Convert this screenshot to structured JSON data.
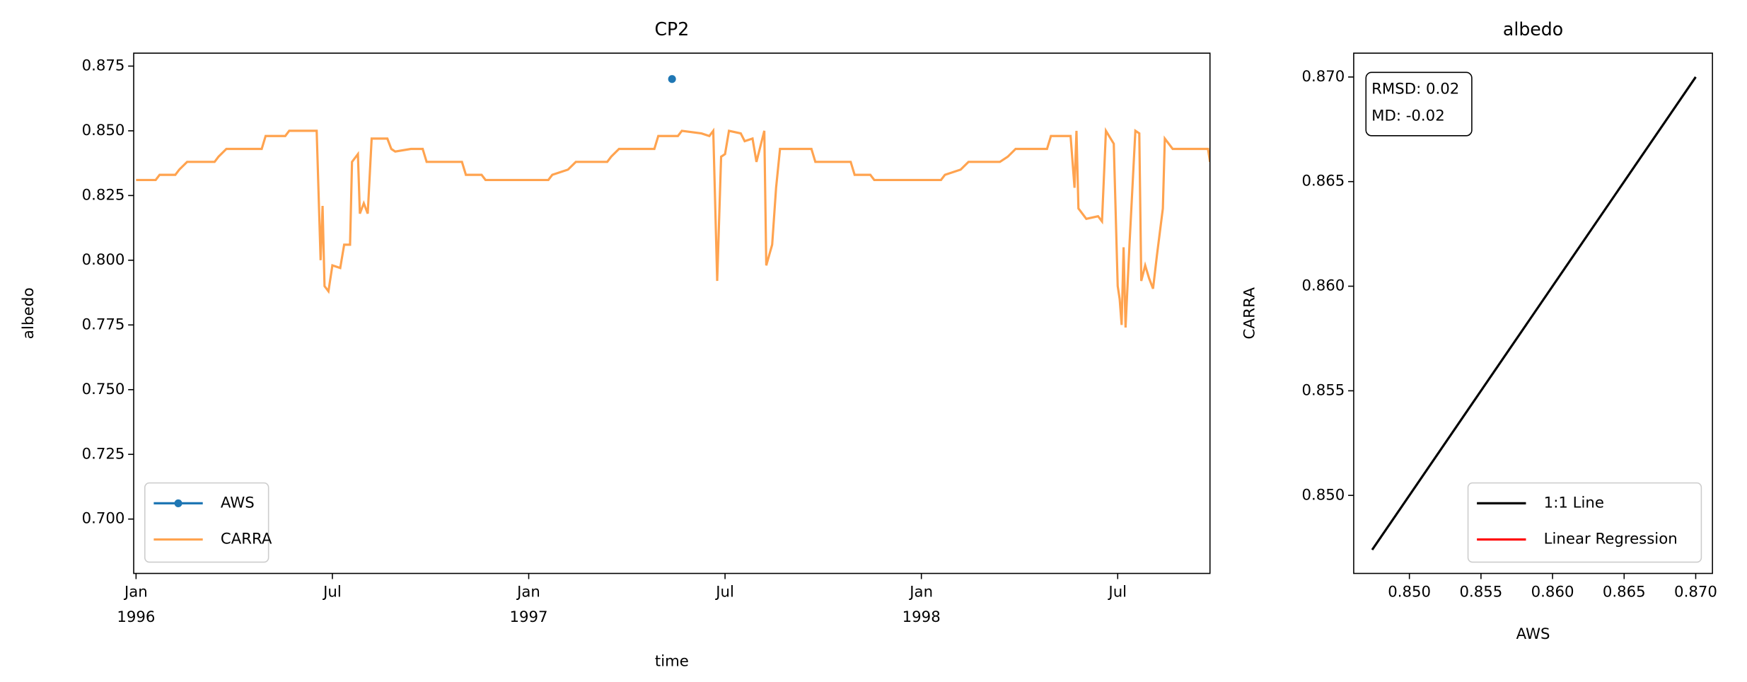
{
  "chart_data": [
    {
      "type": "line",
      "title": "CP2",
      "xlabel": "time",
      "ylabel": "albedo",
      "legend": "lower left",
      "xlim": [
        1995.994,
        1998.735
      ],
      "ylim": [
        0.679,
        0.88
      ],
      "xticks": [
        {
          "value": 1996,
          "label": "Jan\n1996"
        },
        {
          "value": 1996.5,
          "label": "Jul"
        },
        {
          "value": 1997,
          "label": "Jan\n1997"
        },
        {
          "value": 1997.5,
          "label": "Jul"
        },
        {
          "value": 1998,
          "label": "Jan\n1998"
        },
        {
          "value": 1998.5,
          "label": "Jul"
        }
      ],
      "yticks": [
        {
          "value": 0.7,
          "label": "0.700"
        },
        0.725,
        {
          "value": 0.75,
          "label": "0.750"
        },
        0.775,
        {
          "value": 0.8,
          "label": "0.800"
        },
        0.825,
        {
          "value": 0.85,
          "label": "0.850"
        },
        0.875
      ],
      "series": [
        {
          "name": "AWS",
          "color": "#1f77b4",
          "marker": "o",
          "x": [
            1997.365
          ],
          "values": [
            0.87
          ]
        },
        {
          "name": "CARRA",
          "color": "#ffa34f",
          "x": [
            1996.0,
            1996.05,
            1996.06,
            1996.1,
            1996.11,
            1996.13,
            1996.2,
            1996.21,
            1996.23,
            1996.32,
            1996.33,
            1996.38,
            1996.39,
            1996.46,
            1996.47,
            1996.475,
            1996.48,
            1996.49,
            1996.5,
            1996.52,
            1996.53,
            1996.545,
            1996.55,
            1996.565,
            1996.57,
            1996.58,
            1996.59,
            1996.6,
            1996.64,
            1996.65,
            1996.66,
            1996.7,
            1996.73,
            1996.74,
            1996.83,
            1996.84,
            1996.88,
            1996.89,
            1997.05,
            1997.06,
            1997.1,
            1997.12,
            1997.2,
            1997.21,
            1997.23,
            1997.32,
            1997.33,
            1997.38,
            1997.39,
            1997.44,
            1997.46,
            1997.47,
            1997.48,
            1997.49,
            1997.5,
            1997.51,
            1997.54,
            1997.55,
            1997.57,
            1997.58,
            1997.6,
            1997.605,
            1997.62,
            1997.63,
            1997.64,
            1997.72,
            1997.73,
            1997.82,
            1997.83,
            1997.87,
            1997.88,
            1998.05,
            1998.06,
            1998.1,
            1998.12,
            1998.2,
            1998.22,
            1998.24,
            1998.32,
            1998.33,
            1998.38,
            1998.39,
            1998.395,
            1998.4,
            1998.42,
            1998.45,
            1998.46,
            1998.47,
            1998.49,
            1998.5,
            1998.505,
            1998.51,
            1998.515,
            1998.52,
            1998.53,
            1998.545,
            1998.555,
            1998.56,
            1998.57,
            1998.58,
            1998.59,
            1998.6,
            1998.615,
            1998.62,
            1998.64,
            1998.73,
            1998.735
          ],
          "values": [
            0.831,
            0.831,
            0.833,
            0.833,
            0.835,
            0.838,
            0.838,
            0.84,
            0.843,
            0.843,
            0.848,
            0.848,
            0.85,
            0.85,
            0.8,
            0.821,
            0.79,
            0.788,
            0.798,
            0.797,
            0.806,
            0.806,
            0.838,
            0.841,
            0.818,
            0.822,
            0.818,
            0.847,
            0.847,
            0.843,
            0.842,
            0.843,
            0.843,
            0.838,
            0.838,
            0.833,
            0.833,
            0.831,
            0.831,
            0.833,
            0.835,
            0.838,
            0.838,
            0.84,
            0.843,
            0.843,
            0.848,
            0.848,
            0.85,
            0.849,
            0.848,
            0.85,
            0.792,
            0.84,
            0.841,
            0.85,
            0.849,
            0.846,
            0.847,
            0.838,
            0.85,
            0.798,
            0.806,
            0.828,
            0.843,
            0.843,
            0.838,
            0.838,
            0.833,
            0.833,
            0.831,
            0.831,
            0.833,
            0.835,
            0.838,
            0.838,
            0.84,
            0.843,
            0.843,
            0.848,
            0.848,
            0.828,
            0.85,
            0.82,
            0.816,
            0.817,
            0.815,
            0.85,
            0.845,
            0.79,
            0.785,
            0.775,
            0.805,
            0.774,
            0.806,
            0.85,
            0.849,
            0.792,
            0.798,
            0.793,
            0.789,
            0.802,
            0.82,
            0.847,
            0.843,
            0.843,
            0.838
          ]
        }
      ]
    },
    {
      "type": "line",
      "title": "albedo",
      "xlabel": "AWS",
      "ylabel": "CARRA",
      "legend": "lower right",
      "annotation": [
        "RMSD: 0.02",
        "MD: -0.02"
      ],
      "xlim": [
        0.84611,
        0.87117
      ],
      "ylim": [
        0.84627,
        0.87114
      ],
      "xticks": [
        {
          "value": 0.85,
          "label": "0.850"
        },
        0.855,
        {
          "value": 0.86,
          "label": "0.860"
        },
        0.865,
        {
          "value": 0.87,
          "label": "0.870"
        }
      ],
      "yticks": [
        {
          "value": 0.85,
          "label": "0.850"
        },
        0.855,
        {
          "value": 0.86,
          "label": "0.860"
        },
        0.865,
        {
          "value": 0.87,
          "label": "0.870"
        }
      ],
      "x": [
        0.8474,
        0.87
      ],
      "series": [
        {
          "name": "1:1 Line",
          "color": "#000000",
          "values": [
            0.8474,
            0.87
          ]
        },
        {
          "name": "Linear Regression",
          "color": "#ff0000",
          "values": [
            null,
            null
          ]
        }
      ]
    }
  ]
}
